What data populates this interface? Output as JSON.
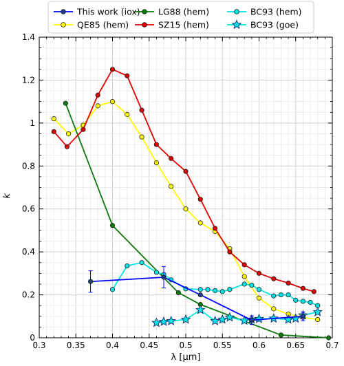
{
  "chart_data": {
    "type": "line",
    "xlabel": "λ [μm]",
    "ylabel": "k",
    "xlim": [
      0.3,
      0.7
    ],
    "ylim": [
      0,
      1.4
    ],
    "grid": true,
    "legend_position": "top",
    "x_ticks": [
      "0.3",
      "0.35",
      "0.4",
      "0.45",
      "0.5",
      "0.55",
      "0.6",
      "0.65",
      "0.7"
    ],
    "y_ticks": [
      "0",
      "0.2",
      "0.4",
      "0.6",
      "0.8",
      "1",
      "1.2",
      "1.4"
    ],
    "series": [
      {
        "name": "This work (iox)",
        "color": "#0000ff",
        "marker": "circle",
        "marker_fill": "#1f3a93",
        "points": [
          [
            0.37,
            0.262,
            0.05
          ],
          [
            0.47,
            0.282,
            0.05
          ],
          [
            0.52,
            0.2,
            null
          ],
          [
            0.59,
            0.082,
            0.02
          ],
          [
            0.66,
            0.1,
            0.02
          ]
        ]
      },
      {
        "name": "QE85 (hem)",
        "color": "#ffff00",
        "marker": "circle",
        "marker_fill": "#ffff00",
        "points": [
          [
            0.32,
            1.02
          ],
          [
            0.34,
            0.95
          ],
          [
            0.36,
            0.99
          ],
          [
            0.38,
            1.08
          ],
          [
            0.4,
            1.1
          ],
          [
            0.42,
            1.04
          ],
          [
            0.44,
            0.935
          ],
          [
            0.46,
            0.815
          ],
          [
            0.48,
            0.705
          ],
          [
            0.5,
            0.6
          ],
          [
            0.52,
            0.535
          ],
          [
            0.54,
            0.495
          ],
          [
            0.56,
            0.415
          ],
          [
            0.58,
            0.285
          ],
          [
            0.6,
            0.185
          ],
          [
            0.62,
            0.135
          ],
          [
            0.64,
            0.11
          ],
          [
            0.66,
            0.095
          ],
          [
            0.68,
            0.085
          ]
        ]
      },
      {
        "name": "LG88 (hem)",
        "color": "#0a7a0a",
        "marker": "circle",
        "marker_fill": "#0a7a0a",
        "points": [
          [
            0.336,
            1.092
          ],
          [
            0.4,
            0.523
          ],
          [
            0.49,
            0.21
          ],
          [
            0.52,
            0.155
          ],
          [
            0.63,
            0.013
          ],
          [
            0.695,
            0.0
          ]
        ]
      },
      {
        "name": "SZ15 (hem)",
        "color": "#e00000",
        "marker": "circle",
        "marker_fill": "#e00000",
        "points": [
          [
            0.32,
            0.96
          ],
          [
            0.338,
            0.89
          ],
          [
            0.36,
            0.97
          ],
          [
            0.38,
            1.13
          ],
          [
            0.4,
            1.25
          ],
          [
            0.42,
            1.22
          ],
          [
            0.44,
            1.06
          ],
          [
            0.46,
            0.9
          ],
          [
            0.48,
            0.835
          ],
          [
            0.5,
            0.775
          ],
          [
            0.52,
            0.645
          ],
          [
            0.54,
            0.51
          ],
          [
            0.56,
            0.4
          ],
          [
            0.58,
            0.34
          ],
          [
            0.6,
            0.3
          ],
          [
            0.62,
            0.275
          ],
          [
            0.64,
            0.255
          ],
          [
            0.66,
            0.23
          ],
          [
            0.675,
            0.215
          ]
        ]
      },
      {
        "name": "BC93 (hem)",
        "color": "#00e5e5",
        "marker": "circle",
        "marker_fill": "#00e5e5",
        "points": [
          [
            0.4,
            0.225
          ],
          [
            0.42,
            0.335
          ],
          [
            0.44,
            0.35
          ],
          [
            0.46,
            0.305
          ],
          [
            0.47,
            0.295
          ],
          [
            0.48,
            0.27
          ],
          [
            0.5,
            0.228
          ],
          [
            0.52,
            0.225
          ],
          [
            0.53,
            0.225
          ],
          [
            0.54,
            0.22
          ],
          [
            0.55,
            0.215
          ],
          [
            0.56,
            0.225
          ],
          [
            0.58,
            0.25
          ],
          [
            0.59,
            0.245
          ],
          [
            0.6,
            0.225
          ],
          [
            0.62,
            0.195
          ],
          [
            0.63,
            0.2
          ],
          [
            0.64,
            0.2
          ],
          [
            0.65,
            0.175
          ],
          [
            0.66,
            0.17
          ],
          [
            0.67,
            0.165
          ],
          [
            0.68,
            0.15
          ]
        ]
      },
      {
        "name": "BC93 (goe)",
        "color": "#00e5e5",
        "marker": "star",
        "marker_fill": "#00e5e5",
        "points": [
          [
            0.46,
            0.07
          ],
          [
            0.47,
            0.075
          ],
          [
            0.48,
            0.078
          ],
          [
            0.5,
            0.085
          ],
          [
            0.52,
            0.13
          ],
          [
            0.54,
            0.078
          ],
          [
            0.55,
            0.085
          ],
          [
            0.56,
            0.095
          ],
          [
            0.58,
            0.08
          ],
          [
            0.59,
            0.085
          ],
          [
            0.6,
            0.088
          ],
          [
            0.62,
            0.09
          ],
          [
            0.64,
            0.085
          ],
          [
            0.65,
            0.09
          ],
          [
            0.66,
            0.105
          ],
          [
            0.68,
            0.12
          ]
        ]
      }
    ]
  }
}
